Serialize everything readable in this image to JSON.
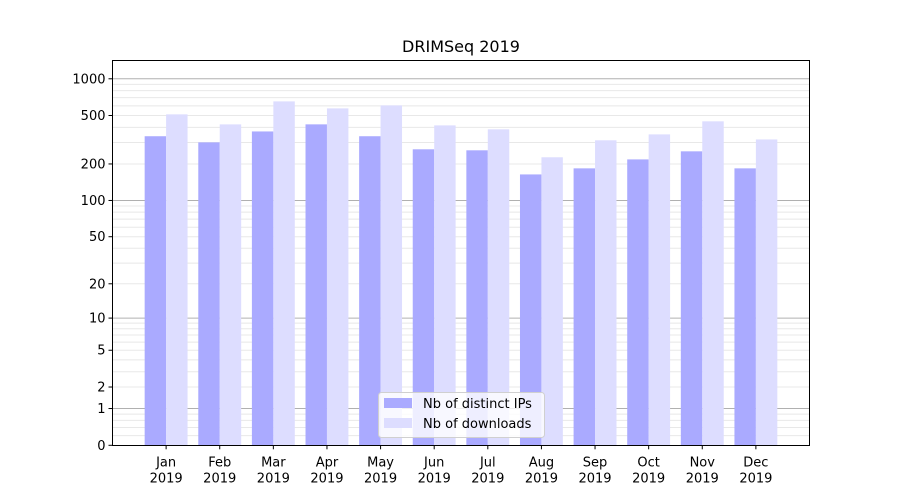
{
  "chart_data": {
    "type": "bar",
    "title": "DRIMSeq 2019",
    "xlabel": "",
    "ylabel": "",
    "yscale": "log(y+1)",
    "ylim": [
      0,
      1412
    ],
    "yticks": [
      0,
      1,
      2,
      5,
      10,
      20,
      50,
      100,
      200,
      500,
      1000
    ],
    "grid": true,
    "legend_position": "lower-center",
    "categories": [
      [
        "Jan",
        "2019"
      ],
      [
        "Feb",
        "2019"
      ],
      [
        "Mar",
        "2019"
      ],
      [
        "Apr",
        "2019"
      ],
      [
        "May",
        "2019"
      ],
      [
        "Jun",
        "2019"
      ],
      [
        "Jul",
        "2019"
      ],
      [
        "Aug",
        "2019"
      ],
      [
        "Sep",
        "2019"
      ],
      [
        "Oct",
        "2019"
      ],
      [
        "Nov",
        "2019"
      ],
      [
        "Dec",
        "2019"
      ]
    ],
    "series": [
      {
        "name": "Nb of distinct IPs",
        "color": "#aaaaff",
        "values": [
          338,
          301,
          370,
          423,
          338,
          264,
          259,
          164,
          184,
          218,
          254,
          184
        ]
      },
      {
        "name": "Nb of downloads",
        "color": "#ddddff",
        "values": [
          511,
          423,
          653,
          572,
          605,
          415,
          385,
          227,
          313,
          350,
          448,
          318
        ]
      }
    ]
  }
}
